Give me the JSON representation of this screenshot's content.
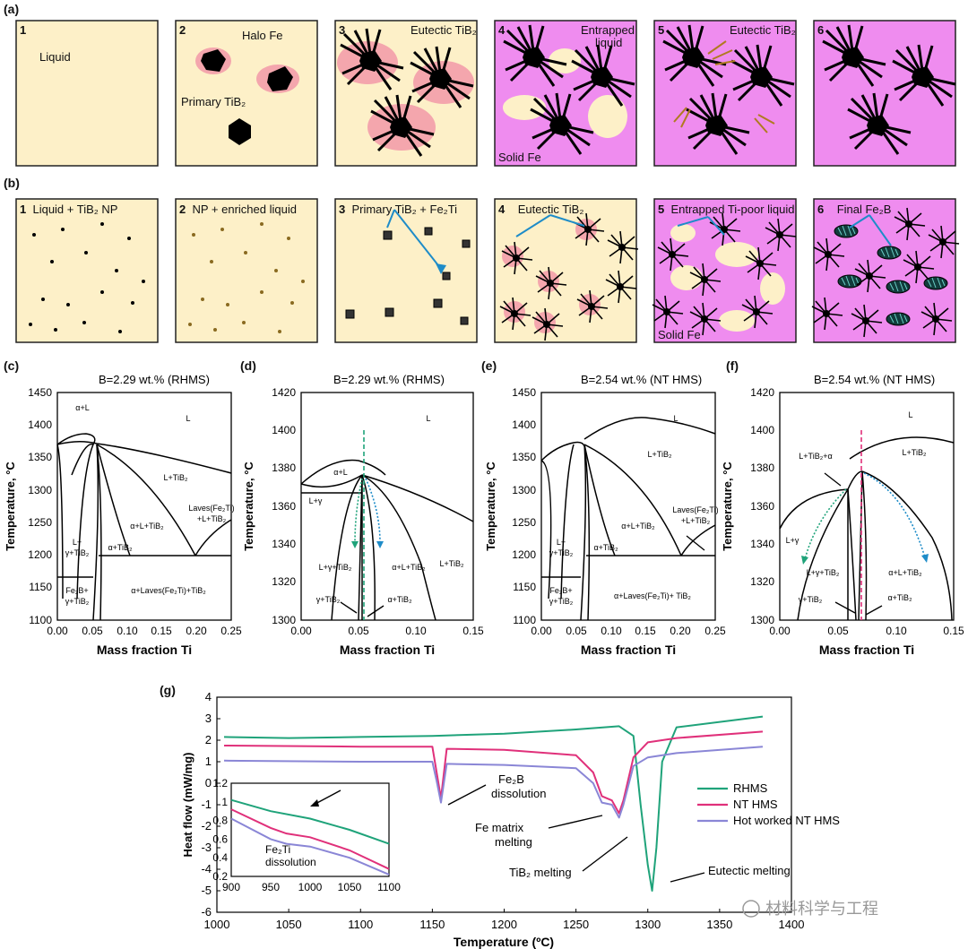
{
  "colors": {
    "liquid": "#fdf0c8",
    "solid": "#ef8cef",
    "halo": "#f4a6ad",
    "arrow_blue": "#1e8cc8",
    "rhms": "#1fa37a",
    "nths": "#e0307a",
    "hot": "#8a86d6"
  },
  "row_a": {
    "label": "(a)",
    "panels": [
      {
        "num": "1",
        "texts": [
          "Liquid"
        ]
      },
      {
        "num": "2",
        "texts": [
          "Halo Fe",
          "Primary TiB₂"
        ]
      },
      {
        "num": "3",
        "texts": [
          "Eutectic TiB₂"
        ]
      },
      {
        "num": "4",
        "texts": [
          "Entrapped",
          "liquid",
          "Solid Fe"
        ]
      },
      {
        "num": "5",
        "texts": [
          "Eutectic TiB₂"
        ]
      },
      {
        "num": "6",
        "texts": []
      }
    ]
  },
  "row_b": {
    "label": "(b)",
    "panels": [
      {
        "num": "1",
        "texts": [
          "Liquid + TiB₂ NP"
        ]
      },
      {
        "num": "2",
        "texts": [
          "NP + enriched liquid"
        ]
      },
      {
        "num": "3",
        "texts": [
          "Primary TiB₂ + Fe₂Ti"
        ]
      },
      {
        "num": "4",
        "texts": [
          "Eutectic TiB₂"
        ]
      },
      {
        "num": "5",
        "texts": [
          "Entrapped Ti-poor liquid",
          "Solid Fe"
        ]
      },
      {
        "num": "6",
        "texts": [
          "Final Fe₂B"
        ]
      }
    ]
  },
  "phase": {
    "c": {
      "label": "(c)",
      "title": "B=2.29 wt.% (RHMS)",
      "ylabel": "Temperature, °C",
      "xlabel": "Mass fraction Ti",
      "yticks": [
        "1450",
        "1400",
        "1350",
        "1300",
        "1250",
        "1200",
        "1150",
        "1100"
      ],
      "xticks": [
        "0.00",
        "0.05",
        "0.10",
        "0.15",
        "0.20",
        "0.25"
      ],
      "regions": [
        "L",
        "α+L",
        "L+TiB₂",
        "α+L+TiB₂",
        "Laves(Fe₂Ti)",
        "+L+TiB₂",
        "L+",
        "γ+TiB₂",
        "α+TiB₂",
        "Fe₂B+",
        "γ+TiB₂",
        "α+Laves(Fe₂Ti)+TiB₂"
      ]
    },
    "d": {
      "label": "(d)",
      "title": "B=2.29 wt.% (RHMS)",
      "ylabel": "Temperature, °C",
      "xlabel": "Mass fraction Ti",
      "yticks": [
        "1420",
        "1400",
        "1380",
        "1360",
        "1340",
        "1320",
        "1300"
      ],
      "xticks": [
        "0.00",
        "0.05",
        "0.10",
        "0.15"
      ],
      "regions": [
        "L",
        "α+L",
        "L+γ",
        "L+TiB₂",
        "L+γ+TiB₂",
        "α+L+TiB₂",
        "γ+TiB₂",
        "α+TiB₂"
      ]
    },
    "e": {
      "label": "(e)",
      "title": "B=2.54 wt.% (NT HMS)",
      "ylabel": "Temperature, °C",
      "xlabel": "Mass fraction Ti",
      "yticks": [
        "1450",
        "1400",
        "1350",
        "1300",
        "1250",
        "1200",
        "1150",
        "1100"
      ],
      "xticks": [
        "0.00",
        "0.05",
        "0.10",
        "0.15",
        "0.20",
        "0.25"
      ],
      "regions": [
        "L",
        "L+TiB₂",
        "Laves(Fe₂Ti)",
        "+L+TiB₂",
        "α+L+TiB₂",
        "L+",
        "γ+TiB₂",
        "α+TiB₂",
        "Fe₂B+",
        "γ+TiB₂",
        "α+Laves(Fe₂Ti)+ TiB₂"
      ]
    },
    "f": {
      "label": "(f)",
      "title": "B=2.54 wt.% (NT HMS)",
      "ylabel": "Temperature, °C",
      "xlabel": "Mass fraction Ti",
      "yticks": [
        "1420",
        "1400",
        "1380",
        "1360",
        "1340",
        "1320",
        "1300"
      ],
      "xticks": [
        "0.00",
        "0.05",
        "0.10",
        "0.15"
      ],
      "regions": [
        "L",
        "L+TiB₂",
        "L+TiB₂+α",
        "L+γ",
        "L+γ+TiB₂",
        "α+L+TiB₂",
        "γ+TiB₂",
        "α+TiB₂"
      ]
    }
  },
  "chart_data": {
    "type": "line",
    "panel_label": "(g)",
    "xlabel": "Temperature (ºC)",
    "ylabel": "Heat flow (mW/mg)",
    "xlim": [
      1000,
      1400
    ],
    "ylim": [
      -6,
      4
    ],
    "xticks": [
      1000,
      1050,
      1100,
      1150,
      1200,
      1250,
      1300,
      1350,
      1400
    ],
    "yticks": [
      4,
      3,
      2,
      1,
      0,
      -1,
      -2,
      -3,
      -4,
      -5,
      -6
    ],
    "series": [
      {
        "name": "RHMS",
        "color": "#1fa37a",
        "x": [
          1005,
          1050,
          1100,
          1150,
          1200,
          1250,
          1280,
          1290,
          1295,
          1300,
          1303,
          1306,
          1310,
          1320,
          1380
        ],
        "y": [
          2.15,
          2.1,
          2.15,
          2.2,
          2.3,
          2.5,
          2.65,
          2.2,
          -1,
          -3.8,
          -5,
          -3,
          1,
          2.6,
          3.1
        ]
      },
      {
        "name": "NT HMS",
        "color": "#e0307a",
        "x": [
          1005,
          1100,
          1150,
          1153,
          1156,
          1160,
          1200,
          1250,
          1262,
          1268,
          1275,
          1280,
          1283,
          1290,
          1300,
          1320,
          1380
        ],
        "y": [
          1.75,
          1.7,
          1.7,
          0.5,
          -0.7,
          1.6,
          1.55,
          1.3,
          0.5,
          -0.6,
          -0.8,
          -1.4,
          -0.8,
          1.2,
          1.9,
          2.1,
          2.4
        ]
      },
      {
        "name": "Hot worked NT HMS",
        "color": "#8a86d6",
        "x": [
          1005,
          1100,
          1150,
          1153,
          1156,
          1160,
          1200,
          1250,
          1262,
          1268,
          1275,
          1280,
          1283,
          1290,
          1300,
          1320,
          1380
        ],
        "y": [
          1.05,
          1.0,
          1.0,
          0.1,
          -0.9,
          0.9,
          0.85,
          0.7,
          0,
          -0.9,
          -1.0,
          -1.6,
          -1.0,
          0.8,
          1.2,
          1.4,
          1.7
        ]
      }
    ],
    "annotations": [
      "Fe₂B",
      "dissolution",
      "Fe matrix",
      "melting",
      "TiB₂ melting",
      "Eutectic melting"
    ],
    "inset": {
      "label": [
        "Fe₂Ti",
        "dissolution"
      ],
      "xlim": [
        900,
        1100
      ],
      "ylim": [
        0.2,
        1.2
      ],
      "xticks": [
        900,
        950,
        1000,
        1050,
        1100
      ],
      "yticks": [
        1.2,
        1,
        0.8,
        0.6,
        0.4,
        0.2
      ],
      "series": [
        {
          "name": "RHMS",
          "x": [
            900,
            950,
            1000,
            1050,
            1100
          ],
          "y": [
            1.02,
            0.9,
            0.82,
            0.7,
            0.55
          ]
        },
        {
          "name": "NT HMS",
          "x": [
            900,
            950,
            970,
            1000,
            1050,
            1100
          ],
          "y": [
            0.92,
            0.72,
            0.66,
            0.62,
            0.48,
            0.28
          ]
        },
        {
          "name": "Hot worked NT HMS",
          "x": [
            900,
            950,
            970,
            1000,
            1050,
            1100
          ],
          "y": [
            0.82,
            0.6,
            0.55,
            0.52,
            0.4,
            0.22
          ]
        }
      ]
    }
  },
  "watermark": "材料科学与工程"
}
